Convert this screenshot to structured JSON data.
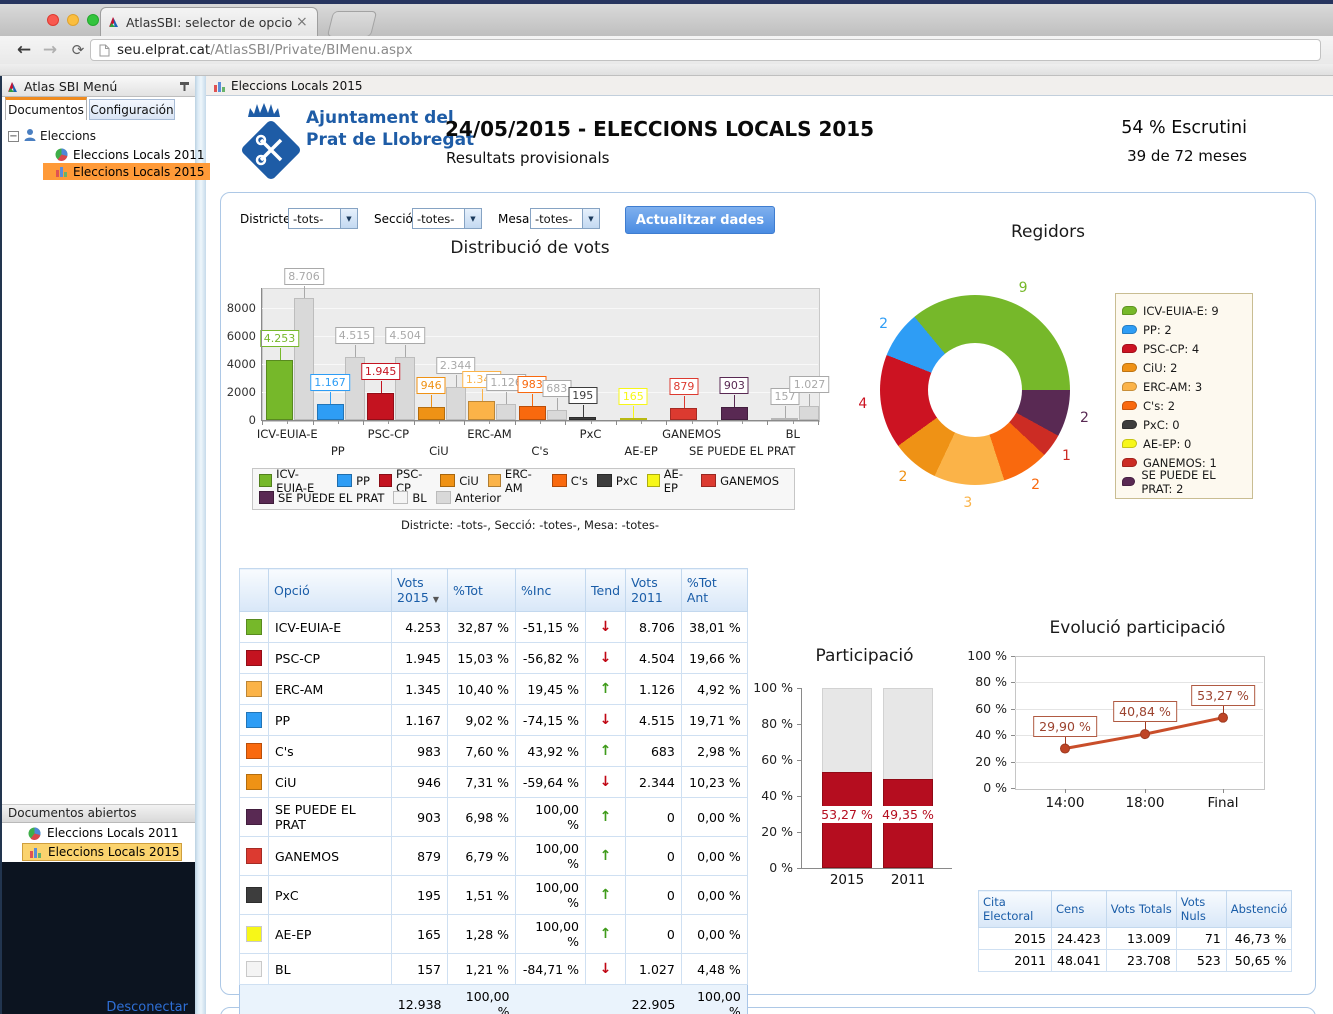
{
  "browser": {
    "tab_title": "AtlasSBI: selector de opcio",
    "url_host": "seu.elprat.cat",
    "url_path": "/AtlasSBI/Private/BIMenu.aspx"
  },
  "icons": {
    "back": "←",
    "forward": "→",
    "reload": "⟳",
    "close": "×",
    "dropdown": "▼",
    "sort": "▼",
    "minus": "−",
    "trend_up": "↑",
    "trend_down": "↓"
  },
  "sidebar": {
    "title": "Atlas SBI Menú",
    "tabs": [
      {
        "label": "Documentos",
        "active": true
      },
      {
        "label": "Configuración",
        "active": false
      }
    ],
    "tree": {
      "root": "Eleccions",
      "children": [
        "Eleccions Locals 2011",
        "Eleccions Locals 2015"
      ],
      "selected": "Eleccions Locals 2015"
    },
    "open_docs_title": "Documentos abiertos",
    "open_docs": [
      "Eleccions Locals 2011",
      "Eleccions Locals 2015"
    ],
    "open_docs_selected": "Eleccions Locals 2015",
    "disconnect_label": "Desconectar"
  },
  "doc_tab": "Eleccions Locals 2015",
  "header": {
    "org_line1": "Ajuntament del",
    "org_line2": "Prat de Llobregat",
    "title": "24/05/2015 - ELECCIONS LOCALS 2015",
    "subtitle": "Resultats provisionals",
    "escrutini": "54 % Escrutini",
    "meses": "39 de 72 meses"
  },
  "filters": {
    "fields": [
      {
        "label": "Districte:",
        "value": "-tots-"
      },
      {
        "label": "Secció:",
        "value": "-totes-"
      },
      {
        "label": "Mesa:",
        "value": "-totes-"
      }
    ],
    "button_label": "Actualitzar dades",
    "caption": "Districte: -tots-, Secció: -totes-, Mesa:  -totes-"
  },
  "chart_data": [
    {
      "id": "distribucio",
      "type": "bar",
      "title": "Distribució de vots",
      "categories": [
        "ICV-EUIA-E",
        "PP",
        "PSC-CP",
        "CiU",
        "ERC-AM",
        "C's",
        "PxC",
        "AE-EP",
        "GANEMOS",
        "SE PUEDE EL PRAT",
        "BL"
      ],
      "colors": [
        "#76b82a",
        "#2e9df5",
        "#c41320",
        "#ef9215",
        "#fbb348",
        "#f9690e",
        "#3d3d3d",
        "#f7f718",
        "#dc3a30",
        "#592953",
        "#f4f4f4"
      ],
      "series": [
        {
          "name": "2015",
          "values": [
            4253,
            1167,
            1945,
            946,
            1345,
            983,
            195,
            165,
            879,
            903,
            157
          ],
          "labels": [
            "4.253",
            "1.167",
            "1.945",
            "946",
            "1.345",
            "983",
            "195",
            "165",
            "879",
            "903",
            "157"
          ]
        },
        {
          "name": "Anterior",
          "color": "#d9d9d9",
          "values": [
            8706,
            4515,
            4504,
            2344,
            1126,
            683,
            null,
            null,
            null,
            null,
            1027
          ],
          "labels": [
            "8.706",
            "4.515",
            "4.504",
            "2.344",
            "1.126",
            "683",
            null,
            null,
            null,
            null,
            "1.027"
          ]
        }
      ],
      "ylim": [
        0,
        9400
      ],
      "yticks": [
        0,
        2000,
        4000,
        6000,
        8000
      ],
      "grid": true,
      "legend_position": "bottom"
    },
    {
      "id": "regidors",
      "type": "pie",
      "title": "Regidors",
      "donut": true,
      "total": 25,
      "slices_clockwise_from_east": [
        {
          "name": "SE PUEDE EL PRAT",
          "value": 2,
          "color": "#592953"
        },
        {
          "name": "GANEMOS",
          "value": 1,
          "color": "#cc2c24"
        },
        {
          "name": "C's",
          "value": 2,
          "color": "#f9690e"
        },
        {
          "name": "ERC-AM",
          "value": 3,
          "color": "#fbb348"
        },
        {
          "name": "CiU",
          "value": 2,
          "color": "#ef9215"
        },
        {
          "name": "PSC-CP",
          "value": 4,
          "color": "#cc1322"
        },
        {
          "name": "PP",
          "value": 2,
          "color": "#2e9df5"
        },
        {
          "name": "ICV-EUIA-E",
          "value": 9,
          "color": "#76b82a"
        }
      ],
      "legend": [
        {
          "label": "ICV-EUIA-E: 9",
          "color": "#76b82a"
        },
        {
          "label": "PP: 2",
          "color": "#2e9df5"
        },
        {
          "label": "PSC-CP: 4",
          "color": "#cc1322"
        },
        {
          "label": "CiU: 2",
          "color": "#ef9215"
        },
        {
          "label": "ERC-AM: 3",
          "color": "#fbb348"
        },
        {
          "label": "C's: 2",
          "color": "#f9690e"
        },
        {
          "label": "PxC: 0",
          "color": "#3d3d3d"
        },
        {
          "label": "AE-EP: 0",
          "color": "#f7f718"
        },
        {
          "label": "GANEMOS: 1",
          "color": "#cc2c24"
        },
        {
          "label": "SE PUEDE EL PRAT: 2",
          "color": "#592953"
        }
      ],
      "legend_position": "right"
    },
    {
      "id": "participacio",
      "type": "bar",
      "title": "Participació",
      "categories": [
        "2015",
        "2011"
      ],
      "values": [
        53.27,
        49.35
      ],
      "labels": [
        "53,27 %",
        "49,35 %"
      ],
      "bar_color": "#b50d1f",
      "ylim": [
        0,
        100
      ],
      "yticks": [
        "0 %",
        "20 %",
        "40 %",
        "60 %",
        "80 %",
        "100 %"
      ]
    },
    {
      "id": "evolucio",
      "type": "line",
      "title": "Evolució participació",
      "x": [
        "14:00",
        "18:00",
        "Final"
      ],
      "values": [
        29.9,
        40.84,
        53.27
      ],
      "labels": [
        "29,90 %",
        "40,84 %",
        "53,27 %"
      ],
      "line_color": "#c94e2a",
      "ylim": [
        0,
        100
      ],
      "yticks": [
        "0 %",
        "20 %",
        "40 %",
        "60 %",
        "80 %",
        "100 %"
      ],
      "grid": true
    }
  ],
  "results_table": {
    "headers": [
      "",
      "Opció",
      "Vots\n2015",
      "%Tot",
      "%Inc",
      "Tend",
      "Vots\n2011",
      "%Tot Ant"
    ],
    "sort_column": "Vots 2015",
    "rows": [
      {
        "color": "#76b82a",
        "name": "ICV-EUIA-E",
        "vots2015": "4.253",
        "tot": "32,87 %",
        "inc": "-51,15 %",
        "trend": "down",
        "vots2011": "8.706",
        "tot_ant": "38,01 %"
      },
      {
        "color": "#c41320",
        "name": "PSC-CP",
        "vots2015": "1.945",
        "tot": "15,03 %",
        "inc": "-56,82 %",
        "trend": "down",
        "vots2011": "4.504",
        "tot_ant": "19,66 %"
      },
      {
        "color": "#fbb348",
        "name": "ERC-AM",
        "vots2015": "1.345",
        "tot": "10,40 %",
        "inc": "19,45 %",
        "trend": "up",
        "vots2011": "1.126",
        "tot_ant": "4,92 %"
      },
      {
        "color": "#2e9df5",
        "name": "PP",
        "vots2015": "1.167",
        "tot": "9,02 %",
        "inc": "-74,15 %",
        "trend": "down",
        "vots2011": "4.515",
        "tot_ant": "19,71 %"
      },
      {
        "color": "#f9690e",
        "name": "C's",
        "vots2015": "983",
        "tot": "7,60 %",
        "inc": "43,92 %",
        "trend": "up",
        "vots2011": "683",
        "tot_ant": "2,98 %"
      },
      {
        "color": "#ef9215",
        "name": "CiU",
        "vots2015": "946",
        "tot": "7,31 %",
        "inc": "-59,64 %",
        "trend": "down",
        "vots2011": "2.344",
        "tot_ant": "10,23 %"
      },
      {
        "color": "#592953",
        "name": "SE PUEDE EL PRAT",
        "vots2015": "903",
        "tot": "6,98 %",
        "inc": "100,00 %",
        "trend": "up",
        "vots2011": "0",
        "tot_ant": "0,00 %"
      },
      {
        "color": "#dc3a30",
        "name": "GANEMOS",
        "vots2015": "879",
        "tot": "6,79 %",
        "inc": "100,00 %",
        "trend": "up",
        "vots2011": "0",
        "tot_ant": "0,00 %"
      },
      {
        "color": "#3d3d3d",
        "name": "PxC",
        "vots2015": "195",
        "tot": "1,51 %",
        "inc": "100,00 %",
        "trend": "up",
        "vots2011": "0",
        "tot_ant": "0,00 %"
      },
      {
        "color": "#f7f718",
        "name": "AE-EP",
        "vots2015": "165",
        "tot": "1,28 %",
        "inc": "100,00 %",
        "trend": "up",
        "vots2011": "0",
        "tot_ant": "0,00 %"
      },
      {
        "color": "#f4f4f4",
        "name": "BL",
        "vots2015": "157",
        "tot": "1,21 %",
        "inc": "-84,71 %",
        "trend": "down",
        "vots2011": "1.027",
        "tot_ant": "4,48 %"
      }
    ],
    "footer": {
      "vots2015": "12.938",
      "tot": "100,00 %",
      "vots2011": "22.905",
      "tot_ant": "100,00 %"
    }
  },
  "cita_table": {
    "headers": [
      "Cita Electoral",
      "Cens",
      "Vots Totals",
      "Vots Nuls",
      "Abstenció"
    ],
    "rows": [
      [
        "2015",
        "24.423",
        "13.009",
        "71",
        "46,73 %"
      ],
      [
        "2011",
        "48.041",
        "23.708",
        "523",
        "50,65 %"
      ]
    ]
  }
}
